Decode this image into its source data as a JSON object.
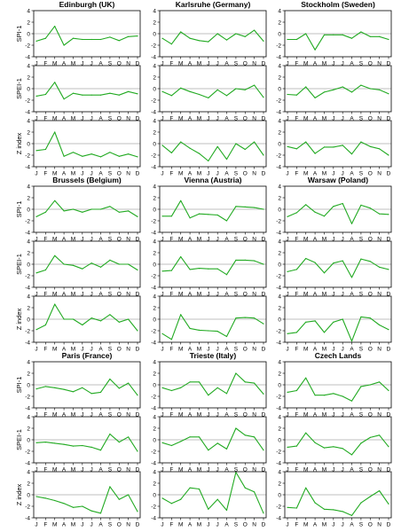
{
  "chart_data": {
    "type": "line",
    "series_color": "#22aa22",
    "months": [
      "J",
      "F",
      "M",
      "A",
      "M",
      "J",
      "J",
      "A",
      "S",
      "O",
      "N",
      "D"
    ],
    "ylim": [
      -4,
      4
    ],
    "yticks": [
      4,
      2,
      0,
      -2,
      -4
    ],
    "index_labels": [
      "SPI-1",
      "SPEI-1",
      "Z index"
    ],
    "stations": [
      {
        "title": "Edinburgh (UK)",
        "series": [
          {
            "name": "SPI-1",
            "values": [
              -1.3,
              -0.8,
              1.3,
              -2.0,
              -0.8,
              -1.0,
              -1.0,
              -1.0,
              -0.6,
              -1.2,
              -0.5,
              -0.4
            ]
          },
          {
            "name": "SPEI-1",
            "values": [
              -1.3,
              -1.0,
              1.1,
              -1.8,
              -0.8,
              -1.1,
              -1.1,
              -1.1,
              -0.8,
              -1.1,
              -0.5,
              -0.9
            ]
          },
          {
            "name": "Z index",
            "values": [
              -1.2,
              -1.0,
              2.0,
              -2.2,
              -1.5,
              -2.2,
              -1.8,
              -2.3,
              -1.5,
              -2.2,
              -1.8,
              -2.3
            ]
          }
        ]
      },
      {
        "title": "Karlsruhe (Germany)",
        "series": [
          {
            "name": "SPI-1",
            "values": [
              -0.8,
              -1.8,
              0.3,
              -0.8,
              -1.2,
              -1.4,
              0.0,
              -1.1,
              0.0,
              -0.5,
              0.6,
              -1.3
            ]
          },
          {
            "name": "SPEI-1",
            "values": [
              -0.5,
              -1.2,
              0.1,
              -0.5,
              -1.0,
              -1.6,
              -0.2,
              -1.2,
              0.0,
              -0.2,
              0.6,
              -1.5
            ]
          },
          {
            "name": "Z index",
            "values": [
              -0.3,
              -1.6,
              0.3,
              -0.8,
              -1.7,
              -3.0,
              -0.5,
              -2.7,
              0.0,
              -1.0,
              0.3,
              -2.0
            ]
          }
        ]
      },
      {
        "title": "Stockholm (Sweden)",
        "series": [
          {
            "name": "SPI-1",
            "values": [
              -1.0,
              -1.0,
              0.0,
              -2.8,
              -0.2,
              -0.2,
              -0.2,
              -0.8,
              0.3,
              -0.5,
              -0.5,
              -1.0
            ]
          },
          {
            "name": "SPEI-1",
            "values": [
              -1.0,
              -1.1,
              0.3,
              -1.6,
              -0.6,
              -0.2,
              0.3,
              -0.6,
              0.6,
              0.0,
              -0.2,
              -0.9
            ]
          },
          {
            "name": "Z index",
            "values": [
              -0.5,
              -0.9,
              0.3,
              -1.7,
              -0.6,
              -0.6,
              -0.3,
              -1.8,
              0.3,
              -0.5,
              -0.9,
              -2.0
            ]
          }
        ]
      },
      {
        "title": "Brussels (Belgium)",
        "series": [
          {
            "name": "SPI-1",
            "values": [
              -1.3,
              -0.5,
              1.5,
              -0.3,
              0.0,
              -0.5,
              0.0,
              0.0,
              0.5,
              -0.5,
              -0.3,
              -1.3
            ]
          },
          {
            "name": "SPEI-1",
            "values": [
              -1.5,
              -1.0,
              1.5,
              0.0,
              -0.2,
              -0.8,
              0.2,
              -0.5,
              0.7,
              0.0,
              0.0,
              -1.0
            ]
          },
          {
            "name": "Z index",
            "values": [
              -1.8,
              -1.0,
              2.6,
              0.0,
              0.0,
              -1.0,
              0.2,
              -0.3,
              0.8,
              -0.5,
              0.0,
              -2.0
            ]
          }
        ]
      },
      {
        "title": "Vienna (Austria)",
        "series": [
          {
            "name": "SPI-1",
            "values": [
              -1.2,
              -1.2,
              1.5,
              -1.5,
              -0.8,
              -0.9,
              -1.0,
              -2.0,
              0.5,
              0.4,
              0.3,
              0.0
            ]
          },
          {
            "name": "SPEI-1",
            "values": [
              -1.2,
              -1.1,
              1.3,
              -0.9,
              -0.7,
              -0.8,
              -0.8,
              -1.8,
              0.7,
              0.7,
              0.6,
              0.0
            ]
          },
          {
            "name": "Z index",
            "values": [
              -2.5,
              -3.5,
              0.8,
              -1.6,
              -1.9,
              -2.0,
              -2.1,
              -3.0,
              0.2,
              0.3,
              0.2,
              -0.8
            ]
          }
        ]
      },
      {
        "title": "Warsaw (Poland)",
        "series": [
          {
            "name": "SPI-1",
            "values": [
              -1.3,
              -0.6,
              0.8,
              -0.5,
              -1.2,
              0.5,
              1.0,
              -2.5,
              0.7,
              0.2,
              -0.8,
              -0.9
            ]
          },
          {
            "name": "SPEI-1",
            "values": [
              -1.3,
              -0.9,
              1.0,
              0.3,
              -1.5,
              0.2,
              0.6,
              -2.3,
              0.9,
              0.5,
              -0.5,
              -0.9
            ]
          },
          {
            "name": "Z index",
            "values": [
              -2.5,
              -2.3,
              -0.5,
              -0.3,
              -2.3,
              -0.5,
              0.0,
              -3.8,
              0.4,
              0.2,
              -1.0,
              -1.8
            ]
          }
        ]
      },
      {
        "title": "Paris (France)",
        "series": [
          {
            "name": "SPI-1",
            "values": [
              -0.7,
              -0.3,
              -0.5,
              -0.8,
              -1.2,
              -0.5,
              -1.5,
              -1.3,
              1.0,
              -0.6,
              0.3,
              -1.8
            ]
          },
          {
            "name": "SPEI-1",
            "values": [
              -0.5,
              -0.4,
              -0.6,
              -0.8,
              -1.1,
              -1.0,
              -1.3,
              -1.8,
              1.0,
              -0.4,
              0.5,
              -2.0
            ]
          },
          {
            "name": "Z index",
            "values": [
              -0.3,
              -0.6,
              -1.0,
              -1.5,
              -2.2,
              -2.0,
              -2.8,
              -3.2,
              1.4,
              -0.8,
              0.0,
              -2.9
            ]
          }
        ]
      },
      {
        "title": "Trieste (Italy)",
        "series": [
          {
            "name": "SPI-1",
            "values": [
              -0.5,
              -1.0,
              -0.5,
              0.5,
              0.5,
              -1.8,
              -0.5,
              -1.5,
              2.0,
              0.5,
              0.3,
              -1.6
            ]
          },
          {
            "name": "SPEI-1",
            "values": [
              -0.5,
              -1.0,
              -0.3,
              0.5,
              0.5,
              -1.8,
              -0.6,
              -1.6,
              2.0,
              0.8,
              0.5,
              -1.8
            ]
          },
          {
            "name": "Z index",
            "values": [
              -0.6,
              -1.5,
              -0.8,
              1.2,
              1.0,
              -2.5,
              -0.8,
              -2.7,
              3.9,
              1.2,
              0.5,
              -3.2
            ]
          }
        ]
      },
      {
        "title": "Czech Lands",
        "series": [
          {
            "name": "SPI-1",
            "values": [
              -1.3,
              -1.0,
              1.2,
              -1.8,
              -1.8,
              -1.5,
              -2.0,
              -2.8,
              -0.3,
              0.0,
              0.5,
              -1.0
            ]
          },
          {
            "name": "SPEI-1",
            "values": [
              -1.3,
              -1.1,
              1.2,
              -0.5,
              -1.4,
              -1.2,
              -1.5,
              -2.6,
              -0.6,
              0.4,
              0.8,
              -1.2
            ]
          },
          {
            "name": "Z index",
            "values": [
              -2.2,
              -2.3,
              1.2,
              -1.4,
              -2.5,
              -2.6,
              -2.9,
              -3.6,
              -1.4,
              -0.3,
              0.7,
              -1.6
            ]
          }
        ]
      }
    ]
  }
}
